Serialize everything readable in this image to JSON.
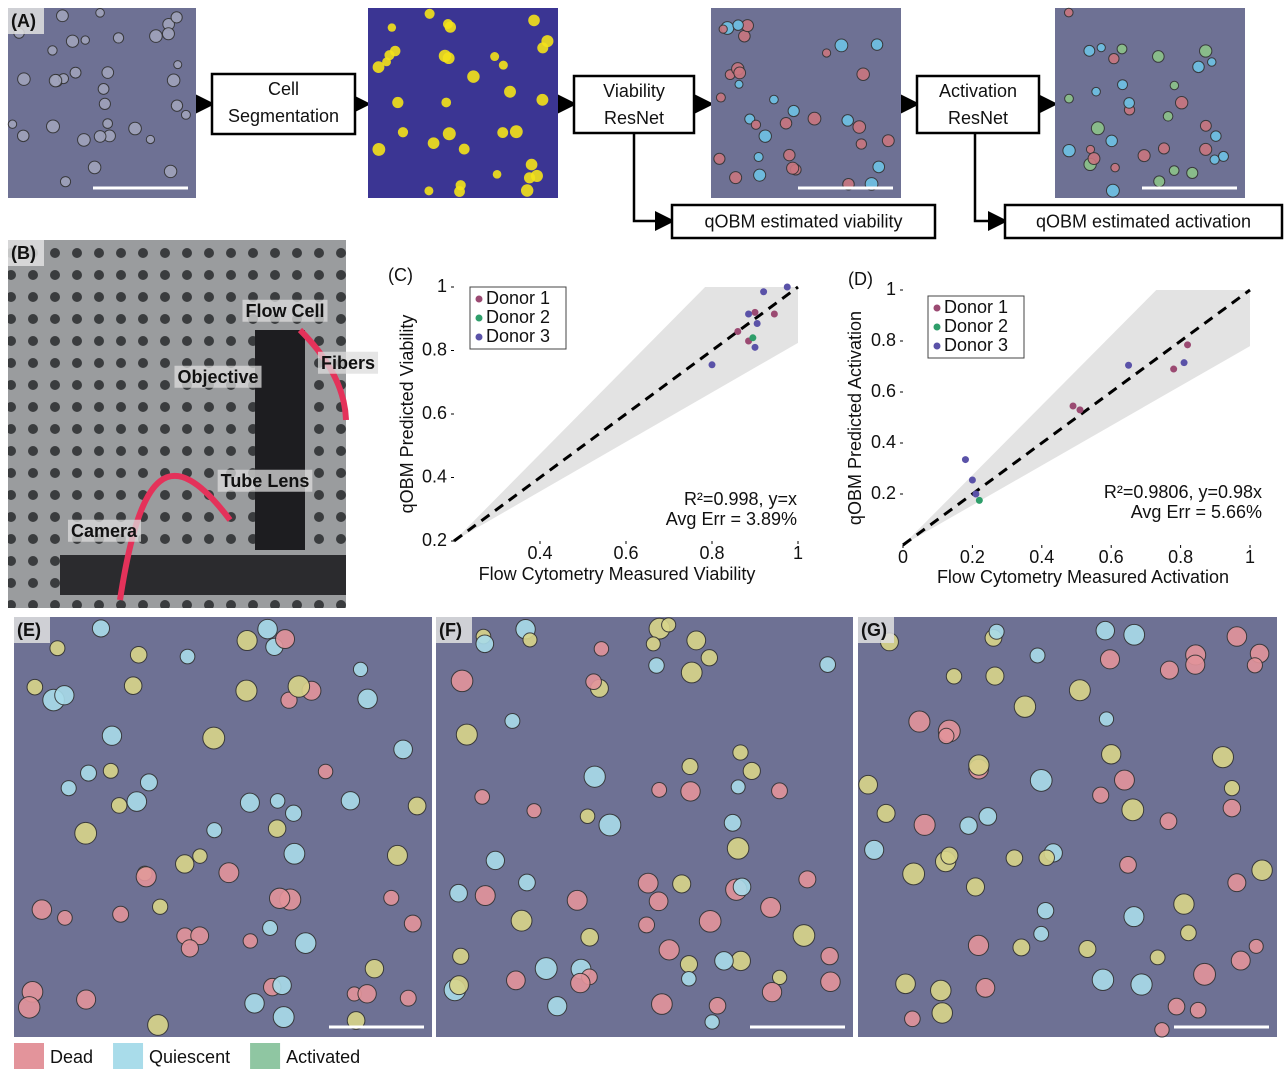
{
  "panel_labels": [
    "(A)",
    "(B)",
    "(C)",
    "(D)",
    "(E)",
    "(F)",
    "(G)"
  ],
  "pipeline": {
    "steps": [
      [
        "Cell",
        "Segmentation"
      ],
      [
        "Viability",
        "ResNet"
      ],
      [
        "Activation",
        "ResNet"
      ]
    ],
    "outputs": [
      "qOBM estimated viability",
      "qOBM estimated activation"
    ]
  },
  "photo_labels": [
    "Flow Cell",
    "Fibers",
    "Objective",
    "Tube Lens",
    "Camera"
  ],
  "class_legend": [
    {
      "name": "Dead",
      "color": "#e3949b"
    },
    {
      "name": "Quiescent",
      "color": "#a9dcea"
    },
    {
      "name": "Activated",
      "color": "#8fc6a2"
    }
  ],
  "chart_data": [
    {
      "type": "scatter",
      "xlabel": "Flow Cytometry Measured Viability",
      "ylabel": "qOBM Predicted Viability",
      "xlim": [
        0.2,
        1
      ],
      "ylim": [
        0.2,
        1
      ],
      "xticks": [
        0.4,
        0.6,
        0.8,
        1
      ],
      "yticks": [
        0.2,
        0.4,
        0.6,
        0.8,
        1
      ],
      "legend": "upper left",
      "annotations": [
        "R²=0.998, y=x",
        "Avg Err = 3.89%"
      ],
      "series": [
        {
          "name": "Donor 1",
          "color": "#9b4a72",
          "x": [
            0.86,
            0.885,
            0.9,
            0.945
          ],
          "values": [
            0.86,
            0.83,
            0.92,
            0.915
          ]
        },
        {
          "name": "Donor 2",
          "color": "#2e9e6a",
          "x": [
            0.895
          ],
          "values": [
            0.84
          ]
        },
        {
          "name": "Donor 3",
          "color": "#5a52a8",
          "x": [
            0.8,
            0.885,
            0.9,
            0.905,
            0.92,
            0.975
          ],
          "values": [
            0.755,
            0.915,
            0.81,
            0.885,
            0.985,
            1.0
          ]
        }
      ]
    },
    {
      "type": "scatter",
      "xlabel": "Flow Cytometry Measured Activation",
      "ylabel": "qOBM Predicted Activation",
      "xlim": [
        0,
        1
      ],
      "ylim": [
        0,
        1
      ],
      "xticks": [
        0,
        0.2,
        0.4,
        0.6,
        0.8,
        1
      ],
      "yticks": [
        0.2,
        0.4,
        0.6,
        0.8,
        1
      ],
      "legend": "upper left",
      "annotations": [
        "R²=0.9806, y=0.98x",
        "Avg Err = 5.66%"
      ],
      "series": [
        {
          "name": "Donor 1",
          "color": "#9b4a72",
          "x": [
            0.49,
            0.51,
            0.78,
            0.82
          ],
          "values": [
            0.545,
            0.53,
            0.69,
            0.785
          ]
        },
        {
          "name": "Donor 2",
          "color": "#2e9e6a",
          "x": [
            0.22
          ],
          "values": [
            0.175
          ]
        },
        {
          "name": "Donor 3",
          "color": "#5a52a8",
          "x": [
            0.18,
            0.2,
            0.21,
            0.65,
            0.81
          ],
          "values": [
            0.335,
            0.255,
            0.2,
            0.705,
            0.715
          ]
        }
      ]
    }
  ]
}
